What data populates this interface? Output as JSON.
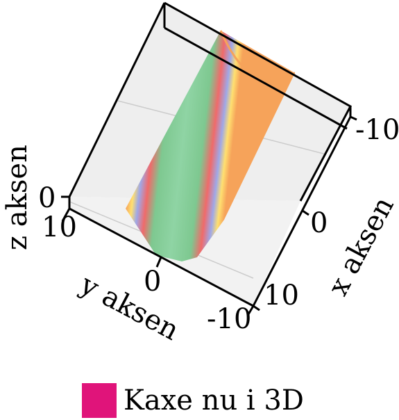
{
  "chart_data": {
    "type": "surface3d",
    "title": "",
    "axes": {
      "x": {
        "label": "x aksen",
        "ticks": [
          "-10",
          "0",
          "10"
        ],
        "range": [
          -10,
          10
        ]
      },
      "y": {
        "label": "y aksen",
        "ticks": [
          "10",
          "0",
          "-10"
        ],
        "range": [
          -10,
          10
        ]
      },
      "z": {
        "label": "z aksen",
        "ticks": [
          "0"
        ],
        "range": [
          0,
          10
        ]
      }
    },
    "surface": {
      "equation_shape": "parabolic trough along x axis, z = y^2 band",
      "color_order_center_to_edge": [
        "#8fd4a4",
        "#7ec890",
        "#f06a6a",
        "#9fa8e8",
        "#ffe070",
        "#f6a35a"
      ]
    },
    "legend": [
      {
        "label": "Kaxe nu i 3D",
        "color": "#e0147a"
      }
    ],
    "grid": true,
    "legend_placement": "bottom-center"
  }
}
